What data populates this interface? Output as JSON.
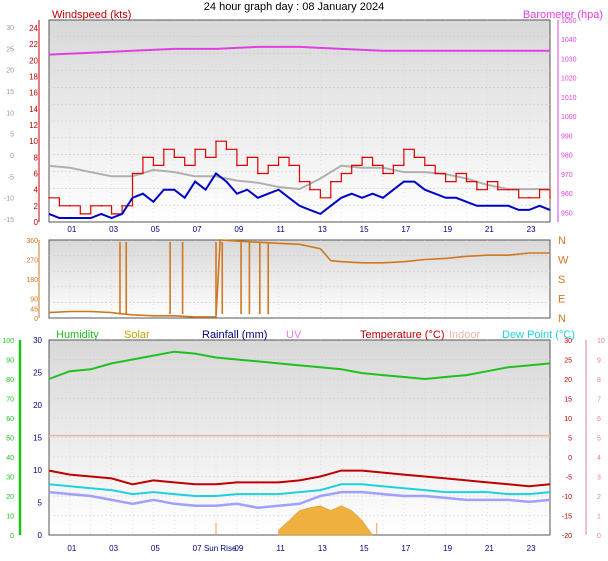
{
  "title": "24 hour graph day : 08 January 2024",
  "colors": {
    "wind": "#e00000",
    "gust_avg": "#0000c8",
    "wind_bg": "#b0b0b0",
    "baro": "#e040e0",
    "dir": "#d07820",
    "humidity": "#20c020",
    "solar": "#c8a000",
    "rainfall": "#000080",
    "uv": "#e080e0",
    "temperature": "#c00000",
    "indoor": "#e8b8a0",
    "dewpoint": "#20d0e0",
    "solar_fill": "#f0b040",
    "feels": "#a0a0ff"
  },
  "chart_data": [
    {
      "type": "line",
      "title": "",
      "left_label": "Windspeed (kts)",
      "right_label": "Barometer (hpa)",
      "x_ticks": [
        "01",
        "03",
        "05",
        "07",
        "09",
        "11",
        "13",
        "15",
        "17",
        "19",
        "21",
        "23"
      ],
      "y_left_ticks": [
        "0",
        "2",
        "4",
        "6",
        "8",
        "10",
        "12",
        "14",
        "16",
        "18",
        "20",
        "22",
        "24"
      ],
      "y_left_outer_ticks": [
        "-15",
        "-10",
        "-5",
        "0",
        "5",
        "10",
        "15",
        "20",
        "25",
        "30"
      ],
      "y_right_ticks": [
        "950",
        "960",
        "970",
        "980",
        "990",
        "1000",
        "1010",
        "1020",
        "1030",
        "1040",
        "1050"
      ],
      "ylim_left": [
        0,
        25
      ],
      "ylim_right": [
        945,
        1050
      ],
      "series": [
        {
          "name": "Barometer (hpa)",
          "x": [
            0,
            2,
            4,
            6,
            8,
            10,
            12,
            14,
            16,
            18,
            20,
            22,
            24
          ],
          "values": [
            1032,
            1033,
            1034,
            1035,
            1035,
            1036,
            1036,
            1035,
            1034,
            1034,
            1034,
            1034,
            1034
          ]
        },
        {
          "name": "Windspeed (kts)",
          "x": [
            0,
            0.5,
            1,
            1.5,
            2,
            2.5,
            3,
            3.5,
            4,
            4.5,
            5,
            5.5,
            6,
            6.5,
            7,
            7.5,
            8,
            8.5,
            9,
            9.5,
            10,
            10.5,
            11,
            11.5,
            12,
            12.5,
            13,
            13.5,
            14,
            14.5,
            15,
            15.5,
            16,
            16.5,
            17,
            17.5,
            18,
            18.5,
            19,
            19.5,
            20,
            20.5,
            21,
            21.5,
            22,
            22.5,
            23,
            23.5,
            24
          ],
          "values": [
            3,
            2,
            2,
            1,
            2,
            2,
            1,
            2,
            6,
            8,
            7,
            9,
            8,
            7,
            9,
            8,
            10,
            9,
            7,
            8,
            6,
            7,
            8,
            7,
            5,
            4,
            3,
            5,
            6,
            7,
            8,
            7,
            6,
            7,
            9,
            8,
            7,
            6,
            5,
            6,
            5,
            4,
            5,
            4,
            4,
            3,
            3,
            4,
            3
          ]
        },
        {
          "name": "Average wind",
          "x": [
            0,
            0.5,
            1,
            1.5,
            2,
            2.5,
            3,
            3.5,
            4,
            4.5,
            5,
            5.5,
            6,
            6.5,
            7,
            7.5,
            8,
            8.5,
            9,
            9.5,
            10,
            10.5,
            11,
            11.5,
            12,
            12.5,
            13,
            13.5,
            14,
            14.5,
            15,
            15.5,
            16,
            16.5,
            17,
            17.5,
            18,
            18.5,
            19,
            19.5,
            20,
            20.5,
            21,
            21.5,
            22,
            22.5,
            23,
            23.5,
            24
          ],
          "values": [
            1,
            0.5,
            0.5,
            0.5,
            0.5,
            1,
            0.5,
            1,
            3,
            3.5,
            2.5,
            4,
            4,
            3,
            5,
            4,
            6,
            5,
            3.5,
            4,
            3,
            3.5,
            4,
            3,
            2,
            1.5,
            1,
            2,
            3,
            3.5,
            3,
            3.5,
            3,
            4,
            5,
            5,
            4,
            3.5,
            3,
            3,
            2.5,
            2,
            2,
            2,
            2,
            1.5,
            1.5,
            2,
            1.5
          ]
        },
        {
          "name": "Temperature trace",
          "x": [
            0,
            1,
            2,
            3,
            4,
            5,
            6,
            7,
            8,
            9,
            10,
            11,
            12,
            13,
            14,
            15,
            16,
            17,
            18,
            19,
            20,
            21,
            22,
            23,
            24
          ],
          "values": [
            -2.5,
            -3,
            -4,
            -5,
            -5,
            -3.5,
            -4,
            -5,
            -5,
            -6,
            -6.5,
            -7.5,
            -8,
            -5.5,
            -2.5,
            -3,
            -3,
            -4,
            -4,
            -4.5,
            -5.5,
            -7,
            -8,
            -8,
            -8
          ]
        }
      ]
    },
    {
      "type": "scatter",
      "title": "",
      "y_left_ticks": [
        "0",
        "45",
        "90",
        "180",
        "270",
        "360"
      ],
      "y_right_ticks": [
        "N",
        "E",
        "S",
        "W",
        "N"
      ],
      "ylim": [
        0,
        360
      ],
      "series": [
        {
          "name": "Wind direction",
          "x": [
            0,
            1,
            2,
            3,
            3.4,
            4,
            5,
            6,
            7,
            7.5,
            8,
            8.2,
            9,
            10,
            11,
            12,
            13,
            13.5,
            14,
            15,
            16,
            17,
            18,
            19,
            20,
            21,
            22,
            23,
            24
          ],
          "values": [
            25,
            30,
            30,
            25,
            20,
            15,
            10,
            10,
            5,
            5,
            5,
            360,
            355,
            350,
            345,
            340,
            320,
            265,
            260,
            255,
            255,
            260,
            270,
            275,
            285,
            290,
            290,
            300,
            300
          ]
        }
      ]
    },
    {
      "type": "line",
      "title": "",
      "legend": [
        "Humidity",
        "Solar",
        "Rainfall (mm)",
        "UV",
        "Temperature (°C)",
        "Indoor",
        "Dew Point (°C)"
      ],
      "y_left_ticks": [
        "0",
        "10",
        "20",
        "30",
        "40",
        "50",
        "60",
        "70",
        "80",
        "90",
        "100"
      ],
      "y_inner_ticks": [
        "0",
        "5",
        "10",
        "15",
        "20",
        "25",
        "30"
      ],
      "y_right_inner_ticks": [
        "-20",
        "-15",
        "-10",
        "-5",
        "0",
        "5",
        "10",
        "15",
        "20",
        "25",
        "30"
      ],
      "y_right_outer_ticks": [
        "0",
        "1",
        "2",
        "3",
        "4",
        "5",
        "6",
        "7",
        "8",
        "9",
        "10"
      ],
      "x_ticks": [
        "01",
        "03",
        "05",
        "07",
        "09",
        "11",
        "13",
        "15",
        "17",
        "19",
        "21",
        "23"
      ],
      "annotations": [
        "Sun Rise"
      ],
      "ylim_humidity": [
        0,
        100
      ],
      "ylim_temp": [
        -20,
        30
      ],
      "series": [
        {
          "name": "Humidity",
          "x": [
            0,
            1,
            2,
            3,
            4,
            5,
            6,
            7,
            8,
            9,
            10,
            11,
            12,
            13,
            14,
            15,
            16,
            17,
            18,
            19,
            20,
            21,
            22,
            23,
            24
          ],
          "values": [
            80,
            84,
            85,
            88,
            90,
            92,
            94,
            93,
            91,
            90,
            89,
            88,
            87,
            86,
            85,
            83,
            82,
            81,
            80,
            81,
            82,
            84,
            86,
            87,
            88
          ]
        },
        {
          "name": "Indoor",
          "x": [
            0,
            24
          ],
          "values": [
            5.5,
            5.5
          ]
        },
        {
          "name": "Temperature (°C)",
          "x": [
            0,
            1,
            2,
            3,
            4,
            5,
            6,
            7,
            8,
            9,
            10,
            11,
            12,
            13,
            14,
            15,
            16,
            17,
            18,
            19,
            20,
            21,
            22,
            23,
            24
          ],
          "values": [
            -3.5,
            -4.5,
            -5,
            -5.5,
            -7,
            -6,
            -6.5,
            -7,
            -7,
            -6.5,
            -6.5,
            -6.5,
            -6,
            -5,
            -3.5,
            -3.5,
            -4,
            -4.5,
            -5,
            -5.5,
            -6,
            -6.5,
            -7,
            -7.5,
            -7
          ]
        },
        {
          "name": "Dew Point (°C)",
          "x": [
            0,
            1,
            2,
            3,
            4,
            5,
            6,
            7,
            8,
            9,
            10,
            11,
            12,
            13,
            14,
            15,
            16,
            17,
            18,
            19,
            20,
            21,
            22,
            23,
            24
          ],
          "values": [
            -7,
            -7.5,
            -8,
            -8.5,
            -9.5,
            -9,
            -9.5,
            -10,
            -10,
            -9.5,
            -9.5,
            -9.5,
            -9,
            -8.5,
            -7,
            -7,
            -7.5,
            -8,
            -8.5,
            -9,
            -9,
            -9,
            -9.5,
            -9.5,
            -9
          ]
        },
        {
          "name": "Feels like",
          "x": [
            0,
            1,
            2,
            3,
            4,
            5,
            6,
            7,
            8,
            9,
            10,
            11,
            12,
            13,
            14,
            15,
            16,
            17,
            18,
            19,
            20,
            21,
            22,
            23,
            24
          ],
          "values": [
            -9,
            -9.5,
            -10,
            -11,
            -12,
            -11,
            -12,
            -12.5,
            -12.5,
            -12,
            -13,
            -12.5,
            -12,
            -10,
            -9,
            -9,
            -9.5,
            -10,
            -10,
            -10.5,
            -11,
            -11,
            -11,
            -11.5,
            -11
          ]
        },
        {
          "name": "Solar",
          "x": [
            11,
            11.5,
            12,
            12.5,
            13,
            13.5,
            14,
            14.5,
            15,
            15.5
          ],
          "values": [
            0.5,
            1.5,
            2.5,
            2.8,
            3,
            2.5,
            3,
            2.5,
            1.5,
            0
          ]
        }
      ]
    }
  ]
}
